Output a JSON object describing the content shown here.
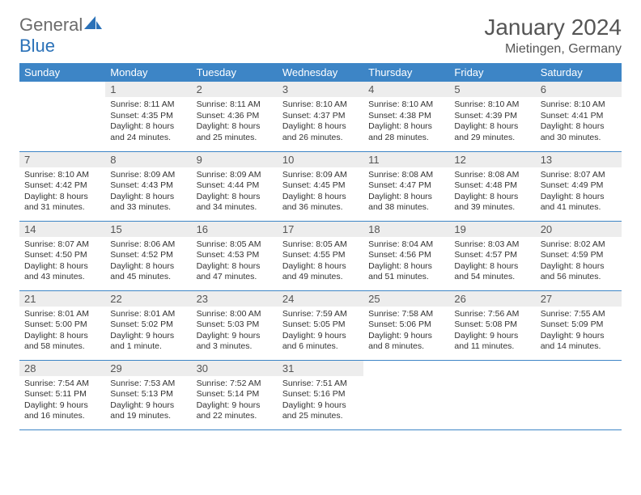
{
  "brand": {
    "part1": "General",
    "part2": "Blue"
  },
  "title": "January 2024",
  "location": "Mietingen, Germany",
  "colors": {
    "header_bg": "#3d85c6",
    "header_text": "#ffffff",
    "daynum_bg": "#ededed",
    "border": "#3d85c6",
    "title_color": "#555555",
    "logo_gray": "#6b6b6b",
    "logo_blue": "#2a71b8"
  },
  "weekdays": [
    "Sunday",
    "Monday",
    "Tuesday",
    "Wednesday",
    "Thursday",
    "Friday",
    "Saturday"
  ],
  "weeks": [
    [
      {
        "n": "",
        "lines": []
      },
      {
        "n": "1",
        "lines": [
          "Sunrise: 8:11 AM",
          "Sunset: 4:35 PM",
          "Daylight: 8 hours",
          "and 24 minutes."
        ]
      },
      {
        "n": "2",
        "lines": [
          "Sunrise: 8:11 AM",
          "Sunset: 4:36 PM",
          "Daylight: 8 hours",
          "and 25 minutes."
        ]
      },
      {
        "n": "3",
        "lines": [
          "Sunrise: 8:10 AM",
          "Sunset: 4:37 PM",
          "Daylight: 8 hours",
          "and 26 minutes."
        ]
      },
      {
        "n": "4",
        "lines": [
          "Sunrise: 8:10 AM",
          "Sunset: 4:38 PM",
          "Daylight: 8 hours",
          "and 28 minutes."
        ]
      },
      {
        "n": "5",
        "lines": [
          "Sunrise: 8:10 AM",
          "Sunset: 4:39 PM",
          "Daylight: 8 hours",
          "and 29 minutes."
        ]
      },
      {
        "n": "6",
        "lines": [
          "Sunrise: 8:10 AM",
          "Sunset: 4:41 PM",
          "Daylight: 8 hours",
          "and 30 minutes."
        ]
      }
    ],
    [
      {
        "n": "7",
        "lines": [
          "Sunrise: 8:10 AM",
          "Sunset: 4:42 PM",
          "Daylight: 8 hours",
          "and 31 minutes."
        ]
      },
      {
        "n": "8",
        "lines": [
          "Sunrise: 8:09 AM",
          "Sunset: 4:43 PM",
          "Daylight: 8 hours",
          "and 33 minutes."
        ]
      },
      {
        "n": "9",
        "lines": [
          "Sunrise: 8:09 AM",
          "Sunset: 4:44 PM",
          "Daylight: 8 hours",
          "and 34 minutes."
        ]
      },
      {
        "n": "10",
        "lines": [
          "Sunrise: 8:09 AM",
          "Sunset: 4:45 PM",
          "Daylight: 8 hours",
          "and 36 minutes."
        ]
      },
      {
        "n": "11",
        "lines": [
          "Sunrise: 8:08 AM",
          "Sunset: 4:47 PM",
          "Daylight: 8 hours",
          "and 38 minutes."
        ]
      },
      {
        "n": "12",
        "lines": [
          "Sunrise: 8:08 AM",
          "Sunset: 4:48 PM",
          "Daylight: 8 hours",
          "and 39 minutes."
        ]
      },
      {
        "n": "13",
        "lines": [
          "Sunrise: 8:07 AM",
          "Sunset: 4:49 PM",
          "Daylight: 8 hours",
          "and 41 minutes."
        ]
      }
    ],
    [
      {
        "n": "14",
        "lines": [
          "Sunrise: 8:07 AM",
          "Sunset: 4:50 PM",
          "Daylight: 8 hours",
          "and 43 minutes."
        ]
      },
      {
        "n": "15",
        "lines": [
          "Sunrise: 8:06 AM",
          "Sunset: 4:52 PM",
          "Daylight: 8 hours",
          "and 45 minutes."
        ]
      },
      {
        "n": "16",
        "lines": [
          "Sunrise: 8:05 AM",
          "Sunset: 4:53 PM",
          "Daylight: 8 hours",
          "and 47 minutes."
        ]
      },
      {
        "n": "17",
        "lines": [
          "Sunrise: 8:05 AM",
          "Sunset: 4:55 PM",
          "Daylight: 8 hours",
          "and 49 minutes."
        ]
      },
      {
        "n": "18",
        "lines": [
          "Sunrise: 8:04 AM",
          "Sunset: 4:56 PM",
          "Daylight: 8 hours",
          "and 51 minutes."
        ]
      },
      {
        "n": "19",
        "lines": [
          "Sunrise: 8:03 AM",
          "Sunset: 4:57 PM",
          "Daylight: 8 hours",
          "and 54 minutes."
        ]
      },
      {
        "n": "20",
        "lines": [
          "Sunrise: 8:02 AM",
          "Sunset: 4:59 PM",
          "Daylight: 8 hours",
          "and 56 minutes."
        ]
      }
    ],
    [
      {
        "n": "21",
        "lines": [
          "Sunrise: 8:01 AM",
          "Sunset: 5:00 PM",
          "Daylight: 8 hours",
          "and 58 minutes."
        ]
      },
      {
        "n": "22",
        "lines": [
          "Sunrise: 8:01 AM",
          "Sunset: 5:02 PM",
          "Daylight: 9 hours",
          "and 1 minute."
        ]
      },
      {
        "n": "23",
        "lines": [
          "Sunrise: 8:00 AM",
          "Sunset: 5:03 PM",
          "Daylight: 9 hours",
          "and 3 minutes."
        ]
      },
      {
        "n": "24",
        "lines": [
          "Sunrise: 7:59 AM",
          "Sunset: 5:05 PM",
          "Daylight: 9 hours",
          "and 6 minutes."
        ]
      },
      {
        "n": "25",
        "lines": [
          "Sunrise: 7:58 AM",
          "Sunset: 5:06 PM",
          "Daylight: 9 hours",
          "and 8 minutes."
        ]
      },
      {
        "n": "26",
        "lines": [
          "Sunrise: 7:56 AM",
          "Sunset: 5:08 PM",
          "Daylight: 9 hours",
          "and 11 minutes."
        ]
      },
      {
        "n": "27",
        "lines": [
          "Sunrise: 7:55 AM",
          "Sunset: 5:09 PM",
          "Daylight: 9 hours",
          "and 14 minutes."
        ]
      }
    ],
    [
      {
        "n": "28",
        "lines": [
          "Sunrise: 7:54 AM",
          "Sunset: 5:11 PM",
          "Daylight: 9 hours",
          "and 16 minutes."
        ]
      },
      {
        "n": "29",
        "lines": [
          "Sunrise: 7:53 AM",
          "Sunset: 5:13 PM",
          "Daylight: 9 hours",
          "and 19 minutes."
        ]
      },
      {
        "n": "30",
        "lines": [
          "Sunrise: 7:52 AM",
          "Sunset: 5:14 PM",
          "Daylight: 9 hours",
          "and 22 minutes."
        ]
      },
      {
        "n": "31",
        "lines": [
          "Sunrise: 7:51 AM",
          "Sunset: 5:16 PM",
          "Daylight: 9 hours",
          "and 25 minutes."
        ]
      },
      {
        "n": "",
        "lines": []
      },
      {
        "n": "",
        "lines": []
      },
      {
        "n": "",
        "lines": []
      }
    ]
  ]
}
